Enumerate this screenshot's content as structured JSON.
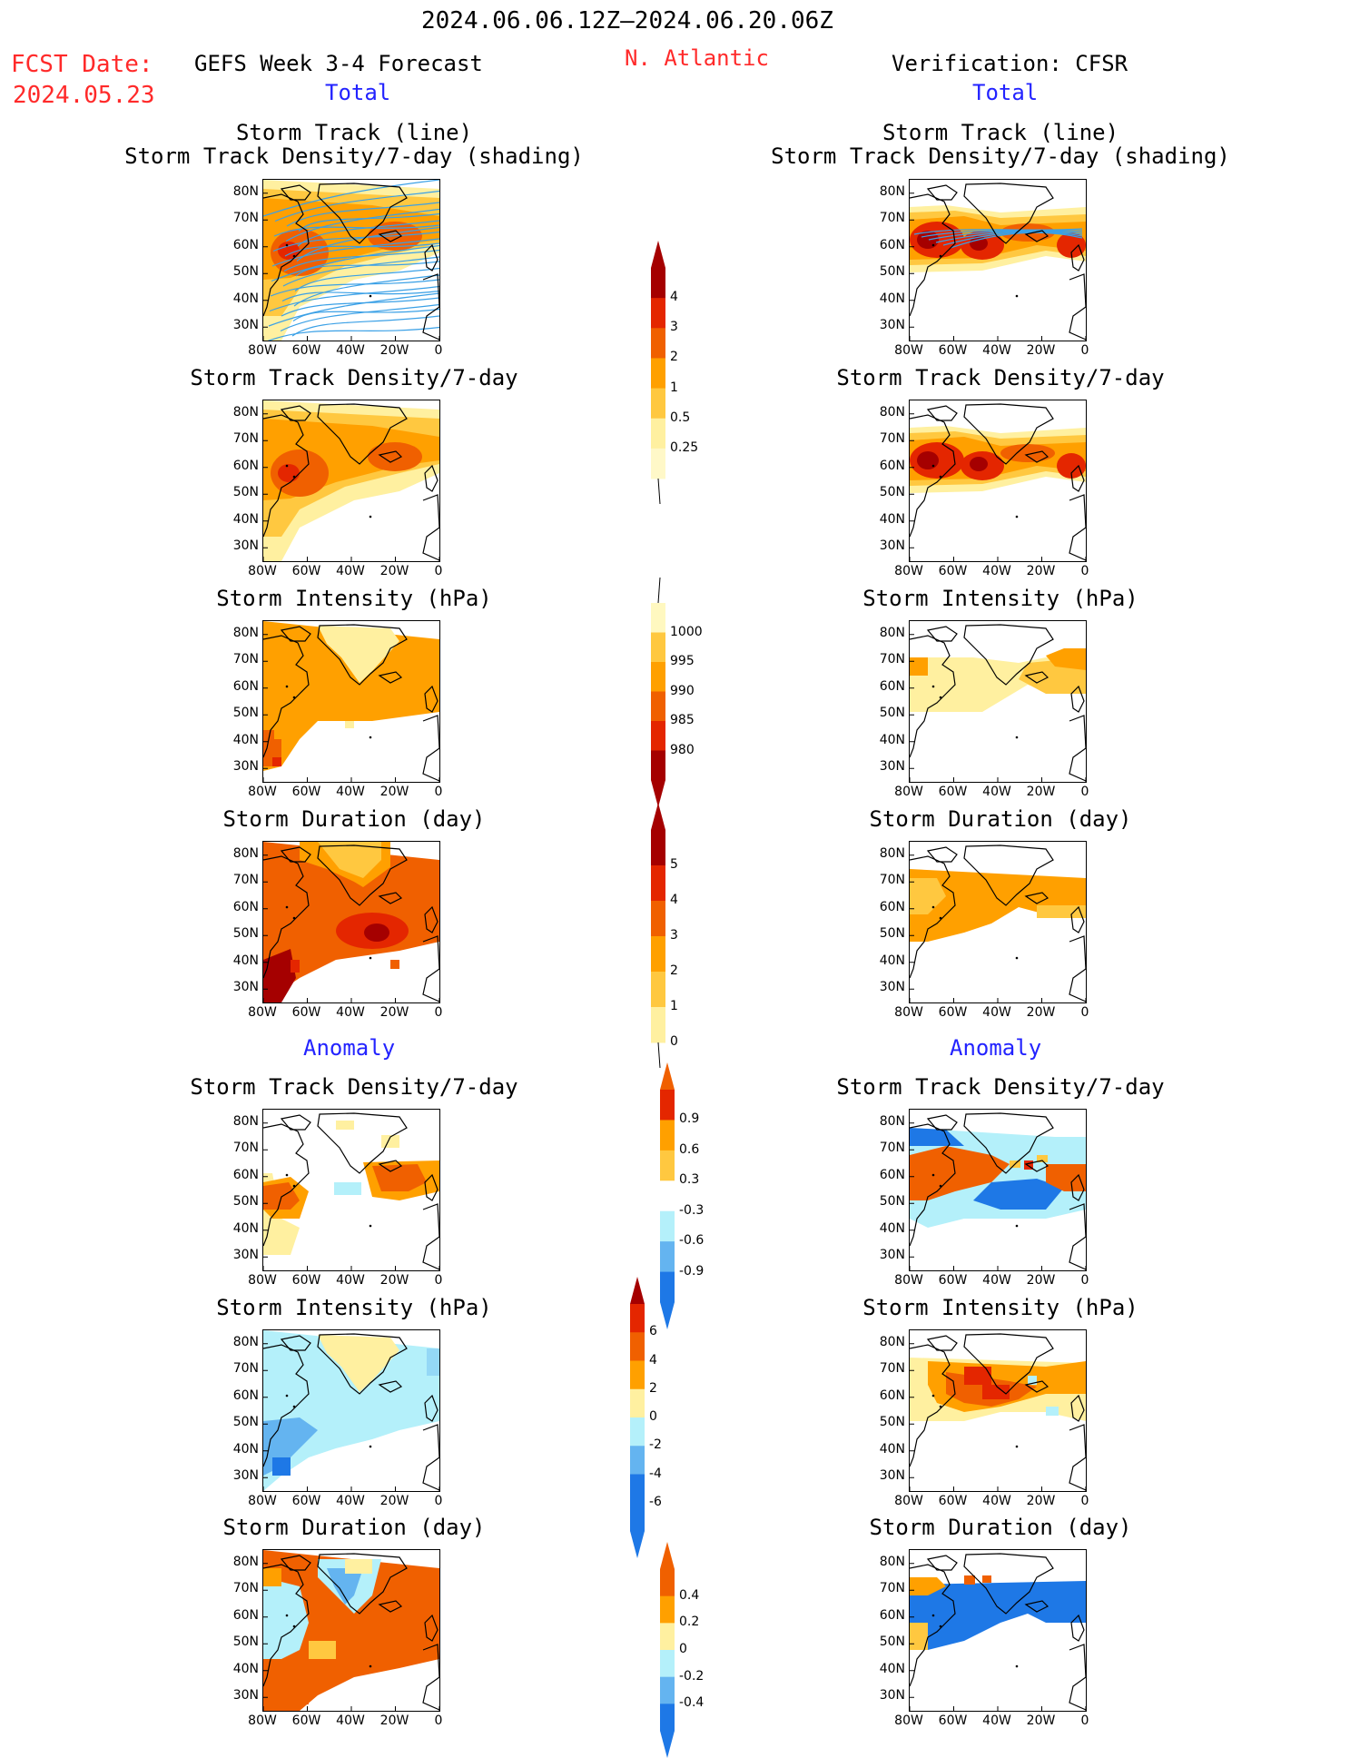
{
  "header": {
    "date_range": "2024.06.06.12Z–2024.06.20.06Z",
    "region": "N. Atlantic",
    "fcst_date_label": "FCST Date:",
    "fcst_date_value": "2024.05.23",
    "forecast_title": "GEFS Week 3-4 Forecast",
    "verification_title": "Verification: CFSR"
  },
  "sections": {
    "total_left": "Total",
    "total_right": "Total",
    "anomaly_left": "Anomaly",
    "anomaly_right": "Anomaly"
  },
  "panel_titles": {
    "track_line": "Storm Track (line)",
    "track_shading": "Storm Track Density/7-day (shading)",
    "density": "Storm Track Density/7-day",
    "intensity": "Storm Intensity (hPa)",
    "duration": "Storm Duration (day)"
  },
  "axes": {
    "lat_ticks": [
      "80N",
      "70N",
      "60N",
      "50N",
      "40N",
      "30N"
    ],
    "lon_ticks": [
      "80W",
      "60W",
      "40W",
      "20W",
      "0"
    ]
  },
  "colorbars": {
    "density": [
      "4",
      "3",
      "2",
      "1",
      "0.5",
      "0.25"
    ],
    "intensity": [
      "1000",
      "995",
      "990",
      "985",
      "980"
    ],
    "duration": [
      "5",
      "4",
      "3",
      "2",
      "1",
      "0"
    ],
    "density_anom": [
      "0.9",
      "0.6",
      "0.3",
      "-0.3",
      "-0.6",
      "-0.9"
    ],
    "intensity_anom": [
      "6",
      "4",
      "2",
      "0",
      "-2",
      "-4",
      "-6"
    ],
    "duration_anom": [
      "0.4",
      "0.2",
      "0",
      "-0.2",
      "-0.4"
    ]
  },
  "colors": {
    "title_red": "#ff2a2a",
    "section_blue": "#2323ff",
    "dark_red": "#a50000",
    "red": "#e42600",
    "orange_red": "#f06000",
    "orange": "#ffa000",
    "light_orange": "#ffc840",
    "pale_yellow": "#fff0a0",
    "light_blue": "#b4f0fa",
    "mid_blue": "#64b4f0",
    "blue": "#1e78e6",
    "dark_blue": "#1e50c8",
    "track_line": "#3aa0e6"
  }
}
